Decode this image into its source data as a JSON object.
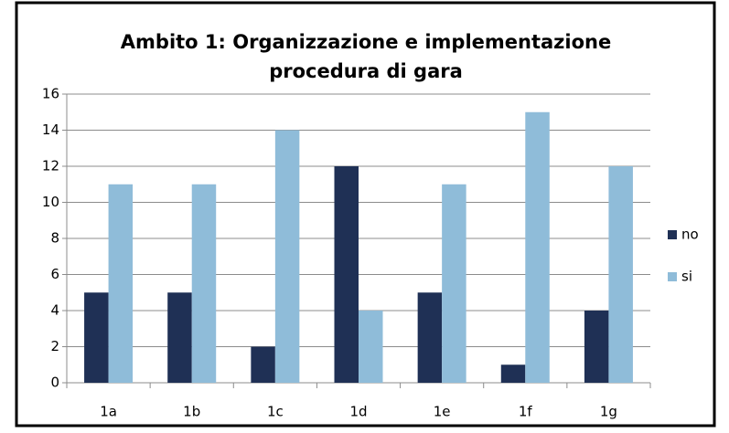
{
  "chart_data": {
    "type": "bar",
    "title": "Ambito 1: Organizzazione e implementazione procedura di gara",
    "categories": [
      "1a",
      "1b",
      "1c",
      "1d",
      "1e",
      "1f",
      "1g"
    ],
    "series": [
      {
        "name": "no",
        "color": "#1f3055",
        "values": [
          5,
          5,
          2,
          12,
          5,
          1,
          4
        ]
      },
      {
        "name": "si",
        "color": "#8fbcd9",
        "values": [
          11,
          11,
          14,
          4,
          11,
          15,
          12
        ]
      }
    ],
    "ylim": [
      0,
      16
    ],
    "yticks": [
      0,
      2,
      4,
      6,
      8,
      10,
      12,
      14,
      16
    ],
    "grid": true,
    "legend": "right"
  }
}
